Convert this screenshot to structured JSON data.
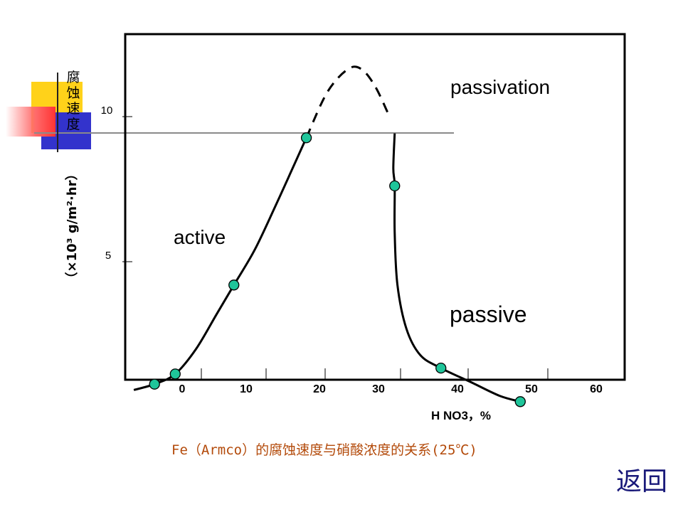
{
  "chart_data": {
    "type": "line",
    "xlabel": "H NO3，%",
    "ylabel": "腐蚀速度",
    "ylabel_unit": "（×10³ g/m²·hr）",
    "x_ticks": [
      "0",
      "10",
      "20",
      "30",
      "40",
      "50",
      "60"
    ],
    "y_ticks": [
      "5",
      "10"
    ],
    "xlim": [
      -8,
      60
    ],
    "ylim": [
      0,
      12.5
    ],
    "points": [
      {
        "x": -4,
        "y": 0.8
      },
      {
        "x": -1,
        "y": 1.15
      },
      {
        "x": 7.5,
        "y": 4.2
      },
      {
        "x": 18,
        "y": 9.25
      },
      {
        "x": 30.8,
        "y": 7.6
      },
      {
        "x": 37.5,
        "y": 1.35
      },
      {
        "x": 49,
        "y": 0.2
      }
    ],
    "curve_solid_1": [
      [
        -7,
        0.6
      ],
      [
        -4,
        0.8
      ],
      [
        -1,
        1.15
      ],
      [
        2,
        2
      ],
      [
        5,
        3.2
      ],
      [
        7.5,
        4.2
      ],
      [
        10.5,
        5.4
      ],
      [
        13.5,
        6.9
      ],
      [
        16,
        8.2
      ],
      [
        18,
        9.25
      ]
    ],
    "curve_dashed": [
      [
        18,
        9.25
      ],
      [
        21,
        10.8
      ],
      [
        24,
        11.6
      ],
      [
        26,
        11.6
      ],
      [
        28,
        11
      ],
      [
        30,
        10
      ]
    ],
    "curve_solid_2": [
      [
        30.8,
        9.4
      ],
      [
        30.6,
        8.2
      ],
      [
        30.8,
        7.6
      ],
      [
        30.8,
        6
      ],
      [
        31.2,
        4.2
      ],
      [
        32.5,
        2.7
      ],
      [
        34.5,
        1.8
      ],
      [
        37.5,
        1.35
      ],
      [
        42,
        0.85
      ],
      [
        46,
        0.4
      ],
      [
        49,
        0.2
      ]
    ],
    "annotations": [
      "passivation",
      "active",
      "passive"
    ]
  },
  "caption": "Fe（Armco）的腐蚀速度与硝酸浓度的关系(25℃)",
  "nav": {
    "back_label": "返回"
  },
  "colors": {
    "marker": "#1fc59a",
    "caption": "#b34a0a",
    "back": "#1a1a7a"
  }
}
